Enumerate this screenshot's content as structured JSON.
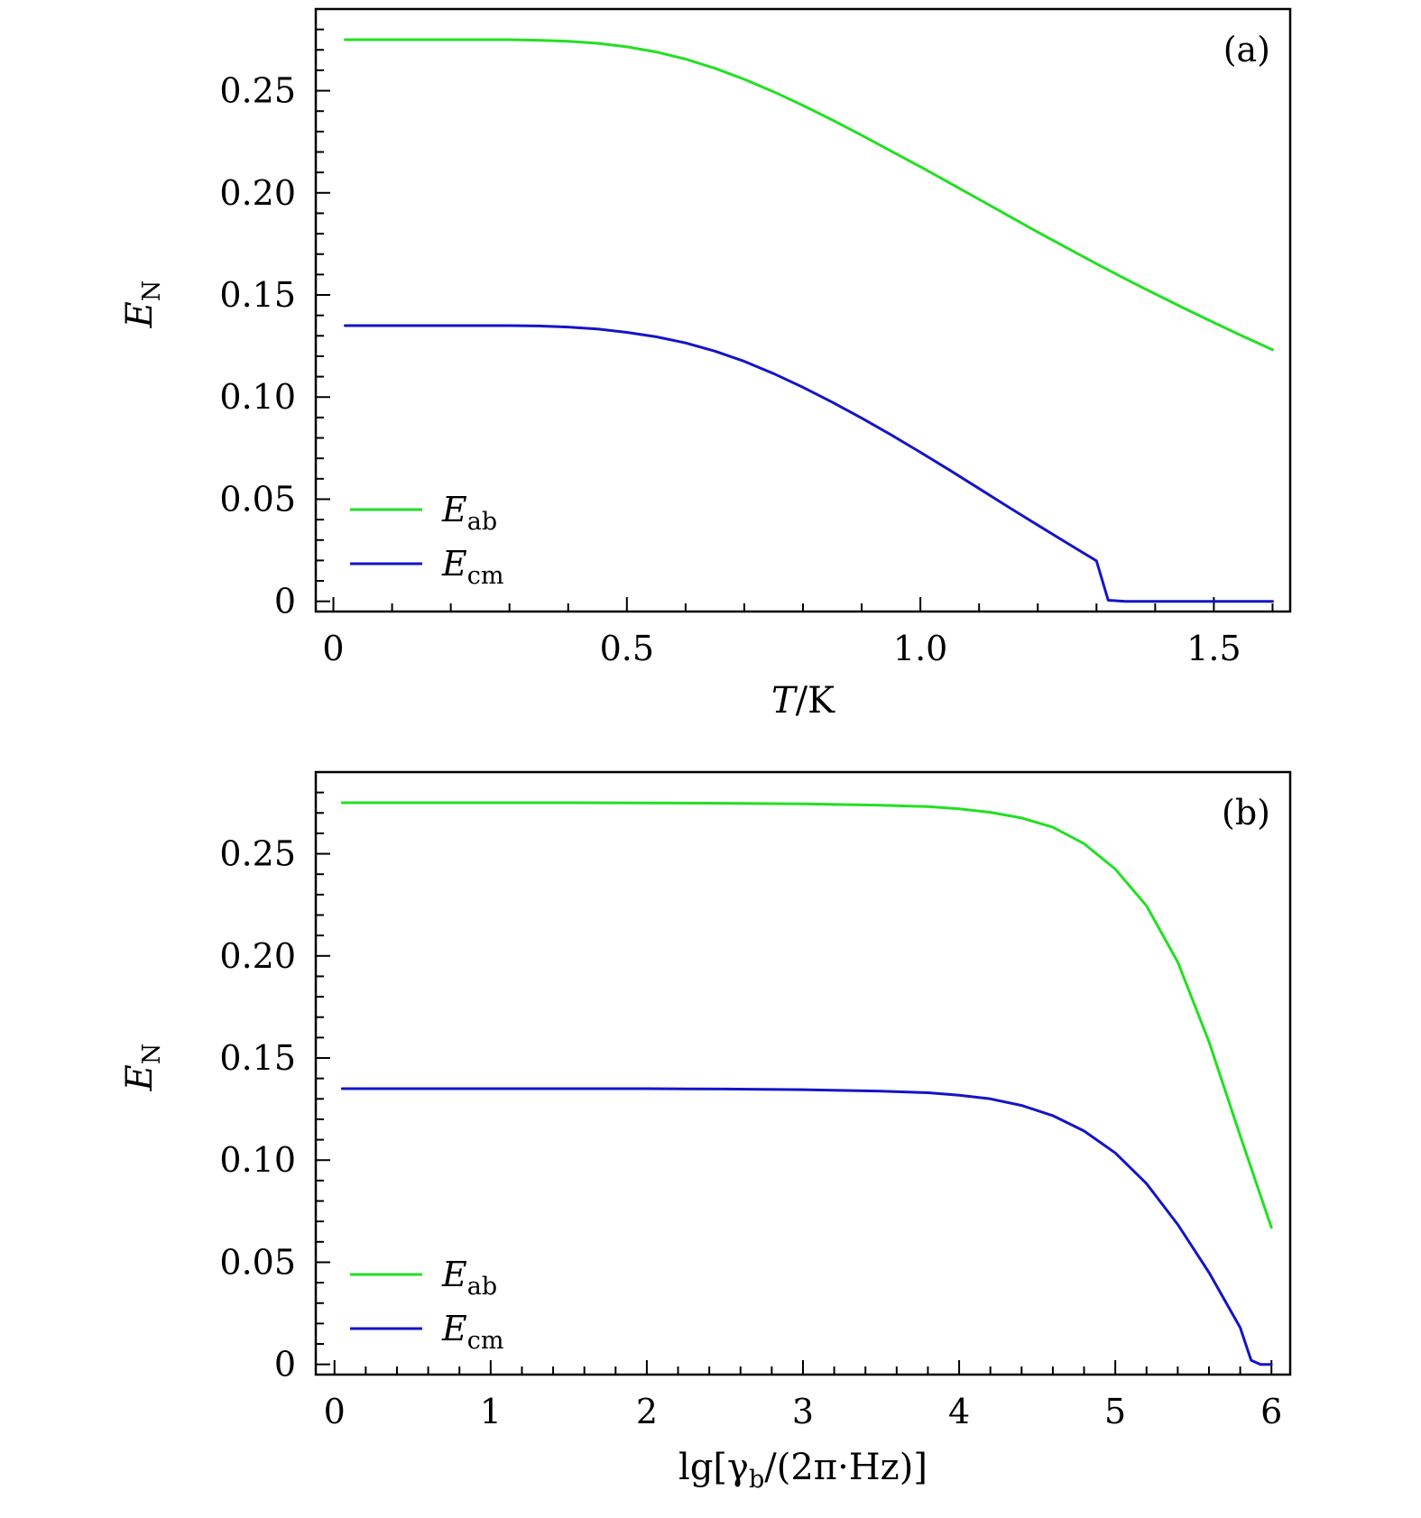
{
  "chart_data": [
    {
      "type": "line",
      "panel_label": "(a)",
      "xlabel": {
        "italic": "T",
        "rest": "/K"
      },
      "ylabel": {
        "base": "E",
        "sub": "N"
      },
      "xlim": [
        -0.03,
        1.63
      ],
      "ylim": [
        -0.005,
        0.29
      ],
      "xticks": [
        0,
        0.5,
        1.0,
        1.5
      ],
      "xtick_labels": [
        "0",
        "0.5",
        "1.0",
        "1.5"
      ],
      "yticks": [
        0,
        0.05,
        0.1,
        0.15,
        0.2,
        0.25
      ],
      "ytick_labels": [
        "0",
        "0.05",
        "0.10",
        "0.15",
        "0.20",
        "0.25"
      ],
      "legend_position": "bottom-left",
      "grid": false,
      "series": [
        {
          "name": "E_ab",
          "legend": {
            "base": "E",
            "sub": "ab"
          },
          "color": "#22e022",
          "x": [
            0.02,
            0.1,
            0.2,
            0.3,
            0.35,
            0.4,
            0.45,
            0.5,
            0.55,
            0.6,
            0.65,
            0.7,
            0.75,
            0.8,
            0.85,
            0.9,
            0.95,
            1.0,
            1.05,
            1.1,
            1.15,
            1.2,
            1.25,
            1.3,
            1.35,
            1.4,
            1.45,
            1.5,
            1.55,
            1.6
          ],
          "y": [
            0.275,
            0.275,
            0.275,
            0.275,
            0.2747,
            0.2742,
            0.2732,
            0.2715,
            0.269,
            0.2655,
            0.261,
            0.2556,
            0.2495,
            0.2428,
            0.2357,
            0.2282,
            0.2205,
            0.2128,
            0.2048,
            0.1968,
            0.1888,
            0.1808,
            0.173,
            0.1653,
            0.1578,
            0.1505,
            0.1434,
            0.1365,
            0.1297,
            0.1232
          ]
        },
        {
          "name": "E_cm",
          "legend": {
            "base": "E",
            "sub": "cm"
          },
          "color": "#1414c8",
          "x": [
            0.02,
            0.1,
            0.2,
            0.3,
            0.35,
            0.4,
            0.45,
            0.5,
            0.55,
            0.6,
            0.65,
            0.7,
            0.75,
            0.8,
            0.85,
            0.9,
            0.95,
            1.0,
            1.05,
            1.1,
            1.15,
            1.2,
            1.25,
            1.3,
            1.32,
            1.35,
            1.4,
            1.5,
            1.6
          ],
          "y": [
            0.135,
            0.135,
            0.135,
            0.135,
            0.1348,
            0.1343,
            0.1333,
            0.1317,
            0.1295,
            0.1265,
            0.1225,
            0.1175,
            0.1115,
            0.1048,
            0.0975,
            0.0897,
            0.0815,
            0.073,
            0.0642,
            0.0552,
            0.0462,
            0.0373,
            0.0285,
            0.0198,
            0.0005,
            0.0,
            0.0,
            0.0,
            0.0
          ]
        }
      ]
    },
    {
      "type": "line",
      "panel_label": "(b)",
      "xlabel": {
        "text": "lg[γb/(2π·Hz)]"
      },
      "ylabel": {
        "base": "E",
        "sub": "N"
      },
      "xlim": [
        -0.12,
        6.12
      ],
      "ylim": [
        -0.005,
        0.29
      ],
      "xticks": [
        0,
        1,
        2,
        3,
        4,
        5,
        6
      ],
      "xtick_labels": [
        "0",
        "1",
        "2",
        "3",
        "4",
        "5",
        "6"
      ],
      "yticks": [
        0,
        0.05,
        0.1,
        0.15,
        0.2,
        0.25
      ],
      "ytick_labels": [
        "0",
        "0.05",
        "0.10",
        "0.15",
        "0.20",
        "0.25"
      ],
      "legend_position": "bottom-left",
      "grid": false,
      "series": [
        {
          "name": "E_ab",
          "legend": {
            "base": "E",
            "sub": "ab"
          },
          "color": "#22e022",
          "x": [
            0.05,
            0.5,
            1.0,
            1.5,
            2.0,
            2.5,
            3.0,
            3.5,
            3.8,
            4.0,
            4.2,
            4.4,
            4.6,
            4.8,
            5.0,
            5.2,
            5.4,
            5.6,
            5.8,
            6.0
          ],
          "y": [
            0.275,
            0.275,
            0.275,
            0.275,
            0.2749,
            0.2747,
            0.2744,
            0.2738,
            0.2731,
            0.272,
            0.2703,
            0.2675,
            0.263,
            0.255,
            0.2425,
            0.2245,
            0.197,
            0.158,
            0.112,
            0.067
          ]
        },
        {
          "name": "E_cm",
          "legend": {
            "base": "E",
            "sub": "cm"
          },
          "color": "#1414c8",
          "x": [
            0.05,
            0.5,
            1.0,
            1.5,
            2.0,
            2.5,
            3.0,
            3.5,
            3.8,
            4.0,
            4.2,
            4.4,
            4.6,
            4.8,
            5.0,
            5.2,
            5.4,
            5.6,
            5.8,
            5.87,
            5.93,
            6.0
          ],
          "y": [
            0.135,
            0.135,
            0.135,
            0.135,
            0.135,
            0.1348,
            0.1345,
            0.1338,
            0.133,
            0.1318,
            0.13,
            0.1268,
            0.1218,
            0.1143,
            0.1035,
            0.0885,
            0.0685,
            0.045,
            0.018,
            0.002,
            0.0,
            0.0
          ]
        }
      ]
    }
  ]
}
